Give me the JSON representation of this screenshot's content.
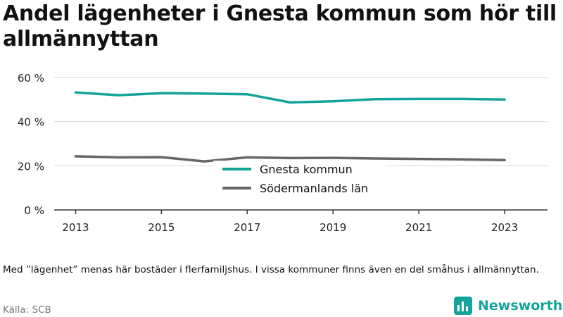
{
  "title": "Andel lägenheter i Gnesta kommun som hör till allmännyttan",
  "note": "Med ”lägenhet” menas här bostäder i flerfamiljshus. I vissa kommuner finns även en del småhus i allmännyttan.",
  "source": "Källa: SCB",
  "brand": {
    "name": "Newsworthy",
    "icon": "newsworthy-logo-icon"
  },
  "colors": {
    "gnesta": "#14a39a",
    "lan": "#666666",
    "grid": "#dddddd",
    "axis": "#333333"
  },
  "chart_data": {
    "type": "line",
    "x": [
      2013,
      2014,
      2015,
      2016,
      2017,
      2018,
      2019,
      2020,
      2021,
      2022,
      2023
    ],
    "x_ticks": [
      2013,
      2015,
      2017,
      2019,
      2021,
      2023
    ],
    "y_ticks": [
      0,
      20,
      40,
      60
    ],
    "y_tick_labels": [
      "0 %",
      "20 %",
      "40 %",
      "60 %"
    ],
    "ylim": [
      0,
      60
    ],
    "xlim": [
      2012.5,
      2024
    ],
    "grid": true,
    "legend_position": "center",
    "series": [
      {
        "name": "Gnesta kommun",
        "color": "#14a39a",
        "values": [
          53.2,
          52.0,
          52.9,
          52.7,
          52.4,
          48.7,
          49.2,
          50.2,
          50.3,
          50.3,
          50.0
        ]
      },
      {
        "name": "Södermanlands län",
        "color": "#666666",
        "values": [
          24.3,
          23.8,
          23.9,
          22.0,
          23.8,
          23.5,
          23.6,
          23.3,
          23.1,
          22.9,
          22.6
        ]
      }
    ]
  }
}
